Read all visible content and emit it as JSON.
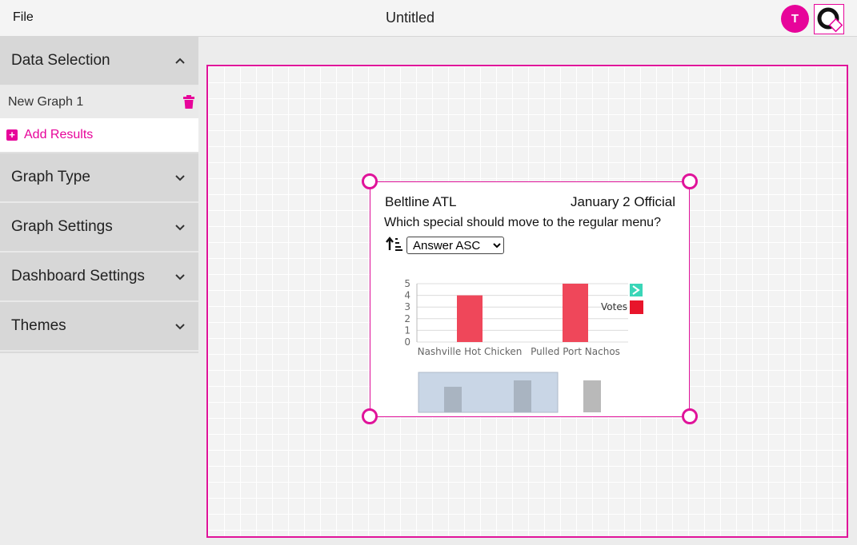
{
  "topbar": {
    "file_label": "File",
    "title": "Untitled",
    "avatar_initial": "T",
    "accent": "#e7049a"
  },
  "sidebar": {
    "sections": [
      {
        "label": "Data Selection",
        "expanded": true
      },
      {
        "label": "Graph Type",
        "expanded": false
      },
      {
        "label": "Graph Settings",
        "expanded": false
      },
      {
        "label": "Dashboard Settings",
        "expanded": false
      },
      {
        "label": "Themes",
        "expanded": false
      }
    ],
    "graph_item": "New Graph 1",
    "add_results": "Add Results"
  },
  "widget": {
    "title": "Beltline ATL",
    "date": "January 2 Official",
    "question": "Which special should move to the regular menu?",
    "sort_value": "Answer ASC"
  },
  "chart_data": {
    "type": "bar",
    "categories": [
      "Nashville Hot Chicken",
      "Pulled Port Nachos"
    ],
    "series": [
      {
        "name": "Votes",
        "values": [
          4,
          5
        ],
        "color": "#ef475a"
      }
    ],
    "ylim": [
      0,
      5
    ],
    "yticks": [
      "0",
      "1",
      "2",
      "3",
      "4",
      "5"
    ],
    "legend": "right",
    "grid": true
  }
}
